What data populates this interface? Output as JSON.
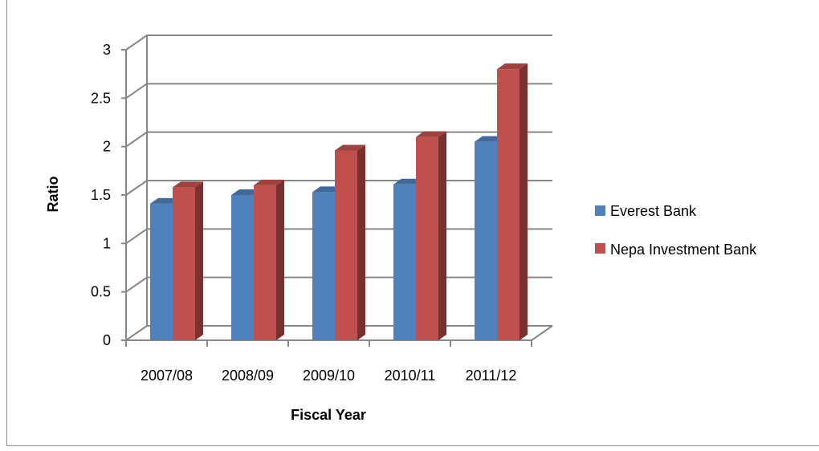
{
  "chart_data": {
    "type": "bar",
    "variant": "3d-clustered-column",
    "categories": [
      "2007/08",
      "2008/09",
      "2009/10",
      "2010/11",
      "2011/12"
    ],
    "series": [
      {
        "name": "Everest Bank",
        "values": [
          1.41,
          1.5,
          1.53,
          1.61,
          2.05
        ],
        "color": "#4F81BD"
      },
      {
        "name": "Nepa Investment Bank",
        "values": [
          1.58,
          1.6,
          1.96,
          2.1,
          2.8
        ],
        "color": "#C0504D"
      }
    ],
    "title": "",
    "xlabel": "Fiscal Year",
    "ylabel": "Ratio",
    "ylim": [
      0,
      3
    ],
    "yticks": [
      "0",
      "0.5",
      "1",
      "1.5",
      "2",
      "2.5",
      "3"
    ],
    "grid": true,
    "legend_position": "right"
  }
}
